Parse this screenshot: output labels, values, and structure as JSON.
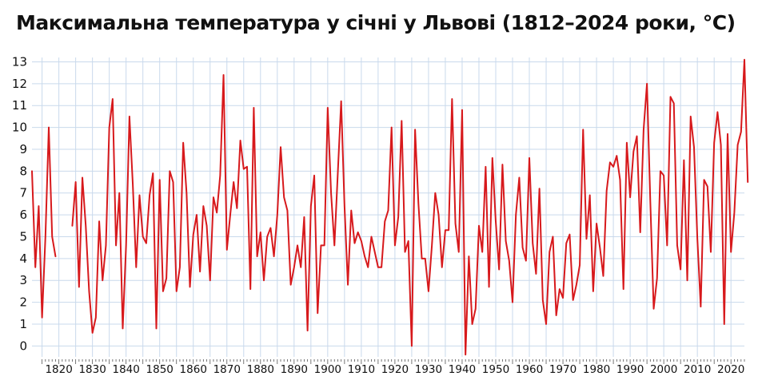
{
  "title": "Максимальна температура у січні у Львові (1812–2024 роки, °C)",
  "colors": {
    "line": "#d7191c",
    "grid": "#c9d9ec",
    "text": "#111111",
    "background": "#ffffff"
  },
  "chart_data": {
    "type": "line",
    "title": "Максимальна температура у січні у Львові (1812–2024 роки, °C)",
    "xlabel": "",
    "ylabel": "",
    "xlim": [
      1812,
      2024
    ],
    "ylim": [
      -0.5,
      13.2
    ],
    "grid": true,
    "legend": "none",
    "xticks": [
      1820,
      1830,
      1840,
      1850,
      1860,
      1870,
      1880,
      1890,
      1900,
      1910,
      1920,
      1930,
      1940,
      1950,
      1960,
      1970,
      1980,
      1990,
      2000,
      2010,
      2020
    ],
    "yticks": [
      0,
      1,
      2,
      3,
      4,
      5,
      6,
      7,
      8,
      9,
      10,
      11,
      12,
      13
    ],
    "series": [
      {
        "name": "",
        "segments": [
          {
            "start_year": 1812,
            "values": [
              8.0,
              3.6,
              6.4,
              1.3,
              5.0,
              10.0,
              5.0,
              4.1
            ]
          },
          {
            "start_year": 1824,
            "values": [
              5.5,
              7.5,
              2.7,
              7.7,
              5.5,
              2.5,
              0.6,
              1.3,
              5.7,
              3.0,
              4.6,
              10.0,
              11.3,
              4.6,
              7.0,
              0.8,
              4.6,
              10.5,
              7.4,
              3.6,
              6.9,
              5.0,
              4.7,
              6.9,
              7.9,
              0.8,
              7.6,
              2.5,
              3.1,
              8.0,
              7.5,
              2.5,
              3.6,
              9.3,
              7.0,
              2.7,
              5.1,
              6.0,
              3.4,
              6.4,
              5.5,
              3.0,
              6.8,
              6.1,
              7.8,
              12.4,
              4.4,
              6.0,
              7.5,
              6.3,
              9.4,
              8.1,
              8.2,
              2.6,
              10.9,
              4.1,
              5.2,
              3.0,
              5.0,
              5.4,
              4.1,
              6.0,
              9.1,
              6.8,
              6.2,
              2.8,
              3.6,
              4.6,
              3.6,
              5.9,
              0.7,
              6.4,
              7.8,
              1.5,
              4.6,
              4.6,
              10.9,
              7.0,
              4.6,
              7.9,
              11.2,
              6.4,
              2.8,
              6.2,
              4.7,
              5.2,
              4.8,
              4.1,
              3.6,
              5.0,
              4.3,
              3.6,
              3.6,
              5.7,
              6.2,
              10.0,
              4.6,
              5.9,
              10.3,
              4.3,
              4.8,
              0.0,
              9.9,
              6.5,
              4.0,
              4.0,
              2.5,
              4.6,
              7.0,
              6.0,
              3.6,
              5.3,
              5.3,
              11.3,
              5.6,
              4.3,
              10.8,
              -0.4,
              4.1,
              1.0,
              1.7,
              5.5,
              4.3,
              8.2,
              2.7,
              8.6,
              5.7,
              3.5,
              8.3,
              4.8,
              3.9,
              2.0,
              6.0,
              7.7,
              4.5,
              3.9,
              8.6,
              4.7,
              3.3,
              7.2,
              2.1,
              1.0,
              4.3,
              5.0,
              1.4,
              2.6,
              2.2,
              4.7,
              5.1,
              2.1,
              2.8,
              3.7,
              9.9,
              4.9,
              6.9,
              2.5,
              5.6,
              4.5,
              3.2,
              7.1,
              8.4,
              8.2,
              8.7,
              7.6,
              2.6,
              9.3,
              6.8,
              8.9,
              9.6,
              5.2,
              9.9,
              12.0,
              6.6,
              1.7,
              3.1,
              8.0,
              7.8,
              4.6,
              11.4,
              11.1,
              4.6,
              3.5,
              8.5,
              3.0,
              10.5,
              9.1,
              4.9,
              1.8,
              7.6,
              7.3,
              4.3,
              9.3,
              10.7,
              9.2,
              1.0,
              9.7,
              4.3,
              6.1,
              9.2,
              9.8,
              13.1,
              7.5
            ]
          }
        ]
      }
    ]
  }
}
